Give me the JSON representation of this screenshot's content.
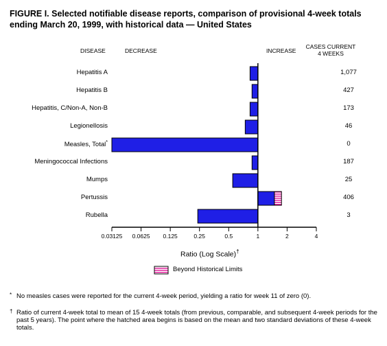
{
  "title": "FIGURE I. Selected notifiable disease reports, comparison of provisional 4-week totals ending March 20, 1999, with historical data — United States",
  "headers": {
    "disease": "DISEASE",
    "decrease": "DECREASE",
    "increase": "INCREASE",
    "cases_line1": "CASES CURRENT",
    "cases_line2": "4 WEEKS"
  },
  "colors": {
    "bar": "#1f1fe6",
    "hatch": "#e0209c",
    "axis": "#000000"
  },
  "chart_data": {
    "type": "bar",
    "orientation": "horizontal",
    "xscale": "log2",
    "xlim": [
      0.03125,
      4
    ],
    "baseline": 1,
    "xlabel": "Ratio (Log Scale)",
    "xlabel_mark": "†",
    "ticks": [
      {
        "value": 0.03125,
        "label": "0.03125"
      },
      {
        "value": 0.0625,
        "label": "0.0625"
      },
      {
        "value": 0.125,
        "label": "0.125"
      },
      {
        "value": 0.25,
        "label": "0.25"
      },
      {
        "value": 0.5,
        "label": "0.5"
      },
      {
        "value": 1,
        "label": "1"
      },
      {
        "value": 2,
        "label": "2"
      },
      {
        "value": 4,
        "label": "4"
      }
    ],
    "rows": [
      {
        "disease": "Hepatitis A",
        "mark": "",
        "ratio": 0.83,
        "beyond_limit": null,
        "cases": "1,077"
      },
      {
        "disease": "Hepatitis B",
        "mark": "",
        "ratio": 0.87,
        "beyond_limit": null,
        "cases": "427"
      },
      {
        "disease": "Hepatitis, C/Non-A, Non-B",
        "mark": "",
        "ratio": 0.83,
        "beyond_limit": null,
        "cases": "173"
      },
      {
        "disease": "Legionellosis",
        "mark": "",
        "ratio": 0.74,
        "beyond_limit": null,
        "cases": "46"
      },
      {
        "disease": "Measles, Total",
        "mark": "*",
        "ratio": 0.03125,
        "beyond_limit": null,
        "cases": "0"
      },
      {
        "disease": "Meningococcal Infections",
        "mark": "",
        "ratio": 0.87,
        "beyond_limit": null,
        "cases": "187"
      },
      {
        "disease": "Mumps",
        "mark": "",
        "ratio": 0.55,
        "beyond_limit": null,
        "cases": "25"
      },
      {
        "disease": "Pertussis",
        "mark": "",
        "ratio": 1.75,
        "beyond_limit": 1.48,
        "cases": "406"
      },
      {
        "disease": "Rubella",
        "mark": "",
        "ratio": 0.24,
        "beyond_limit": null,
        "cases": "3"
      }
    ],
    "legend": [
      {
        "label": "Beyond Historical Limits",
        "style": "hatched"
      }
    ]
  },
  "footnotes": [
    {
      "mark": "*",
      "text": "No measles cases were reported for the current 4-week period, yielding a ratio for week 11 of zero (0)."
    },
    {
      "mark": "†",
      "text": "Ratio of current 4-week total to mean of 15 4-week totals (from previous, comparable, and subsequent 4-week periods for the past 5 years). The point where the hatched area begins is based on the mean and two standard deviations of these 4-week totals."
    }
  ]
}
